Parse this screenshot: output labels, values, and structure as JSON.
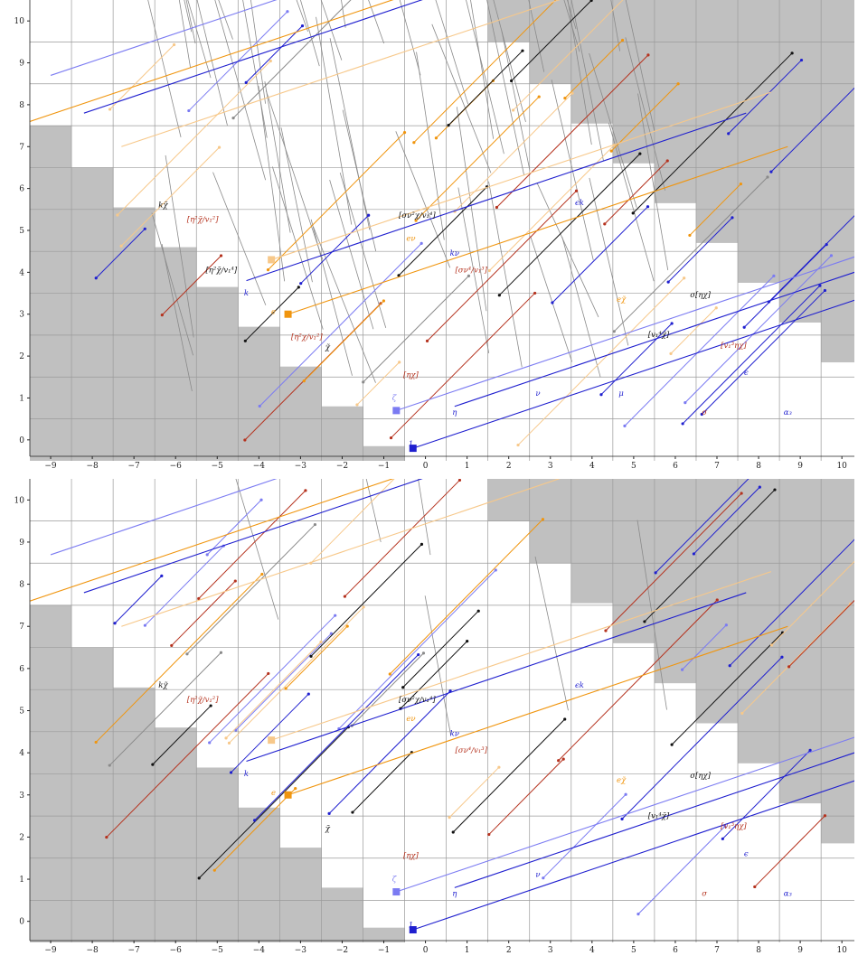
{
  "colors": {
    "background": "#ffffff",
    "shade": "#c0c0c0",
    "gridline": "#9a9a9a",
    "axis": "#222222",
    "blue": "#1f1fcf",
    "lightblue": "#7b7bf2",
    "orange": "#f0950e",
    "lightorange": "#f7c88a",
    "red": "#b5321e",
    "black": "#111111",
    "gray": "#8a8a8a"
  },
  "chart_data": [
    {
      "type": "scatter",
      "title": "",
      "xlabel": "",
      "ylabel": "",
      "xlim": [
        -9.5,
        10.3
      ],
      "ylim": [
        -0.5,
        10.5
      ],
      "xticks": [
        -9,
        -8,
        -7,
        -6,
        -5,
        -4,
        -3,
        -2,
        -1,
        0,
        1,
        2,
        3,
        4,
        5,
        6,
        7,
        8,
        9,
        10
      ],
      "yticks": [
        0,
        1,
        2,
        3,
        4,
        5,
        6,
        7,
        8,
        9,
        10
      ],
      "grid": true,
      "labels": [
        {
          "text": "1",
          "x": -0.35,
          "y": -0.15,
          "color": "blue"
        },
        {
          "text": "ζ",
          "x": -0.75,
          "y": 0.95,
          "color": "lightblue"
        },
        {
          "text": "η",
          "x": 0.7,
          "y": 0.6,
          "color": "blue"
        },
        {
          "text": "ν",
          "x": 2.7,
          "y": 1.05,
          "color": "blue"
        },
        {
          "text": "μ",
          "x": 4.7,
          "y": 1.05,
          "color": "blue"
        },
        {
          "text": "σ",
          "x": 6.7,
          "y": 0.6,
          "color": "red"
        },
        {
          "text": "α₃",
          "x": 8.7,
          "y": 0.6,
          "color": "blue"
        },
        {
          "text": "ϵ",
          "x": 7.7,
          "y": 1.55,
          "color": "blue"
        },
        {
          "text": "χ̃",
          "x": -2.35,
          "y": 2.15,
          "color": "black"
        },
        {
          "text": "[ηχ]",
          "x": -0.35,
          "y": 1.5,
          "color": "red"
        },
        {
          "text": "e",
          "x": -3.65,
          "y": 3.0,
          "color": "orange"
        },
        {
          "text": "k",
          "x": -4.3,
          "y": 3.45,
          "color": "blue"
        },
        {
          "text": "kν",
          "x": 0.7,
          "y": 4.4,
          "color": "blue"
        },
        {
          "text": "eν",
          "x": -0.35,
          "y": 4.75,
          "color": "orange"
        },
        {
          "text": "kχ̃",
          "x": -6.3,
          "y": 5.55,
          "color": "black"
        },
        {
          "text": "ϵk",
          "x": 3.7,
          "y": 5.6,
          "color": "blue"
        },
        {
          "text": "σ[ηχ]",
          "x": 6.6,
          "y": 3.4,
          "color": "black"
        },
        {
          "text": "[v₁⁴χ̃]",
          "x": 5.6,
          "y": 2.45,
          "color": "black"
        },
        {
          "text": "[v₁³ηχ]",
          "x": 7.4,
          "y": 2.2,
          "color": "red"
        },
        {
          "text": "[σν⁴/v₁³]",
          "x": 1.1,
          "y": 4.0,
          "color": "red"
        },
        {
          "text": "[σν²χ/v₁⁴]",
          "x": -0.2,
          "y": 5.3,
          "color": "black"
        },
        {
          "text": "[η²χ̃/v₁²]",
          "x": -5.35,
          "y": 5.2,
          "color": "red"
        },
        {
          "text": "[η²χ/v₁²]",
          "x": -2.85,
          "y": 2.4,
          "color": "red"
        },
        {
          "text": "[η²χ̃/v₁⁴]",
          "x": -4.9,
          "y": 4.0,
          "color": "black"
        },
        {
          "text": "eχ̃",
          "x": 4.7,
          "y": 3.3,
          "color": "orange"
        }
      ]
    },
    {
      "type": "scatter",
      "title": "",
      "xlabel": "",
      "ylabel": "",
      "xlim": [
        -9.5,
        10.3
      ],
      "ylim": [
        -0.5,
        10.5
      ],
      "xticks": [
        -9,
        -8,
        -7,
        -6,
        -5,
        -4,
        -3,
        -2,
        -1,
        0,
        1,
        2,
        3,
        4,
        5,
        6,
        7,
        8,
        9,
        10
      ],
      "yticks": [
        0,
        1,
        2,
        3,
        4,
        5,
        6,
        7,
        8,
        9,
        10
      ],
      "grid": true,
      "labels": [
        {
          "text": "1",
          "x": -0.35,
          "y": -0.15,
          "color": "blue"
        },
        {
          "text": "ζ",
          "x": -0.75,
          "y": 0.95,
          "color": "lightblue"
        },
        {
          "text": "η",
          "x": 0.7,
          "y": 0.6,
          "color": "blue"
        },
        {
          "text": "ν",
          "x": 2.7,
          "y": 1.05,
          "color": "blue"
        },
        {
          "text": "σ",
          "x": 6.7,
          "y": 0.6,
          "color": "red"
        },
        {
          "text": "α₃",
          "x": 8.7,
          "y": 0.6,
          "color": "blue"
        },
        {
          "text": "ϵ",
          "x": 7.7,
          "y": 1.55,
          "color": "blue"
        },
        {
          "text": "χ̃",
          "x": -2.35,
          "y": 2.15,
          "color": "black"
        },
        {
          "text": "[ηχ]",
          "x": -0.35,
          "y": 1.5,
          "color": "red"
        },
        {
          "text": "e",
          "x": -3.65,
          "y": 3.0,
          "color": "orange"
        },
        {
          "text": "k",
          "x": -4.3,
          "y": 3.45,
          "color": "blue"
        },
        {
          "text": "kν",
          "x": 0.7,
          "y": 4.4,
          "color": "blue"
        },
        {
          "text": "eν",
          "x": -0.35,
          "y": 4.75,
          "color": "orange"
        },
        {
          "text": "kχ̃",
          "x": -6.3,
          "y": 5.55,
          "color": "black"
        },
        {
          "text": "ϵk",
          "x": 3.7,
          "y": 5.55,
          "color": "blue"
        },
        {
          "text": "σ[ηχ]",
          "x": 6.6,
          "y": 3.4,
          "color": "black"
        },
        {
          "text": "[v₁⁴χ̃]",
          "x": 5.6,
          "y": 2.45,
          "color": "black"
        },
        {
          "text": "[v₁³ηχ]",
          "x": 7.4,
          "y": 2.2,
          "color": "red"
        },
        {
          "text": "[σν⁴/v₁³]",
          "x": 1.1,
          "y": 4.0,
          "color": "red"
        },
        {
          "text": "[σν²χ/v₁⁴]",
          "x": -0.2,
          "y": 5.2,
          "color": "black"
        },
        {
          "text": "[η²χ̃/v₁²]",
          "x": -5.35,
          "y": 5.2,
          "color": "red"
        },
        {
          "text": "eχ̃",
          "x": 4.7,
          "y": 3.3,
          "color": "orange"
        }
      ]
    }
  ]
}
